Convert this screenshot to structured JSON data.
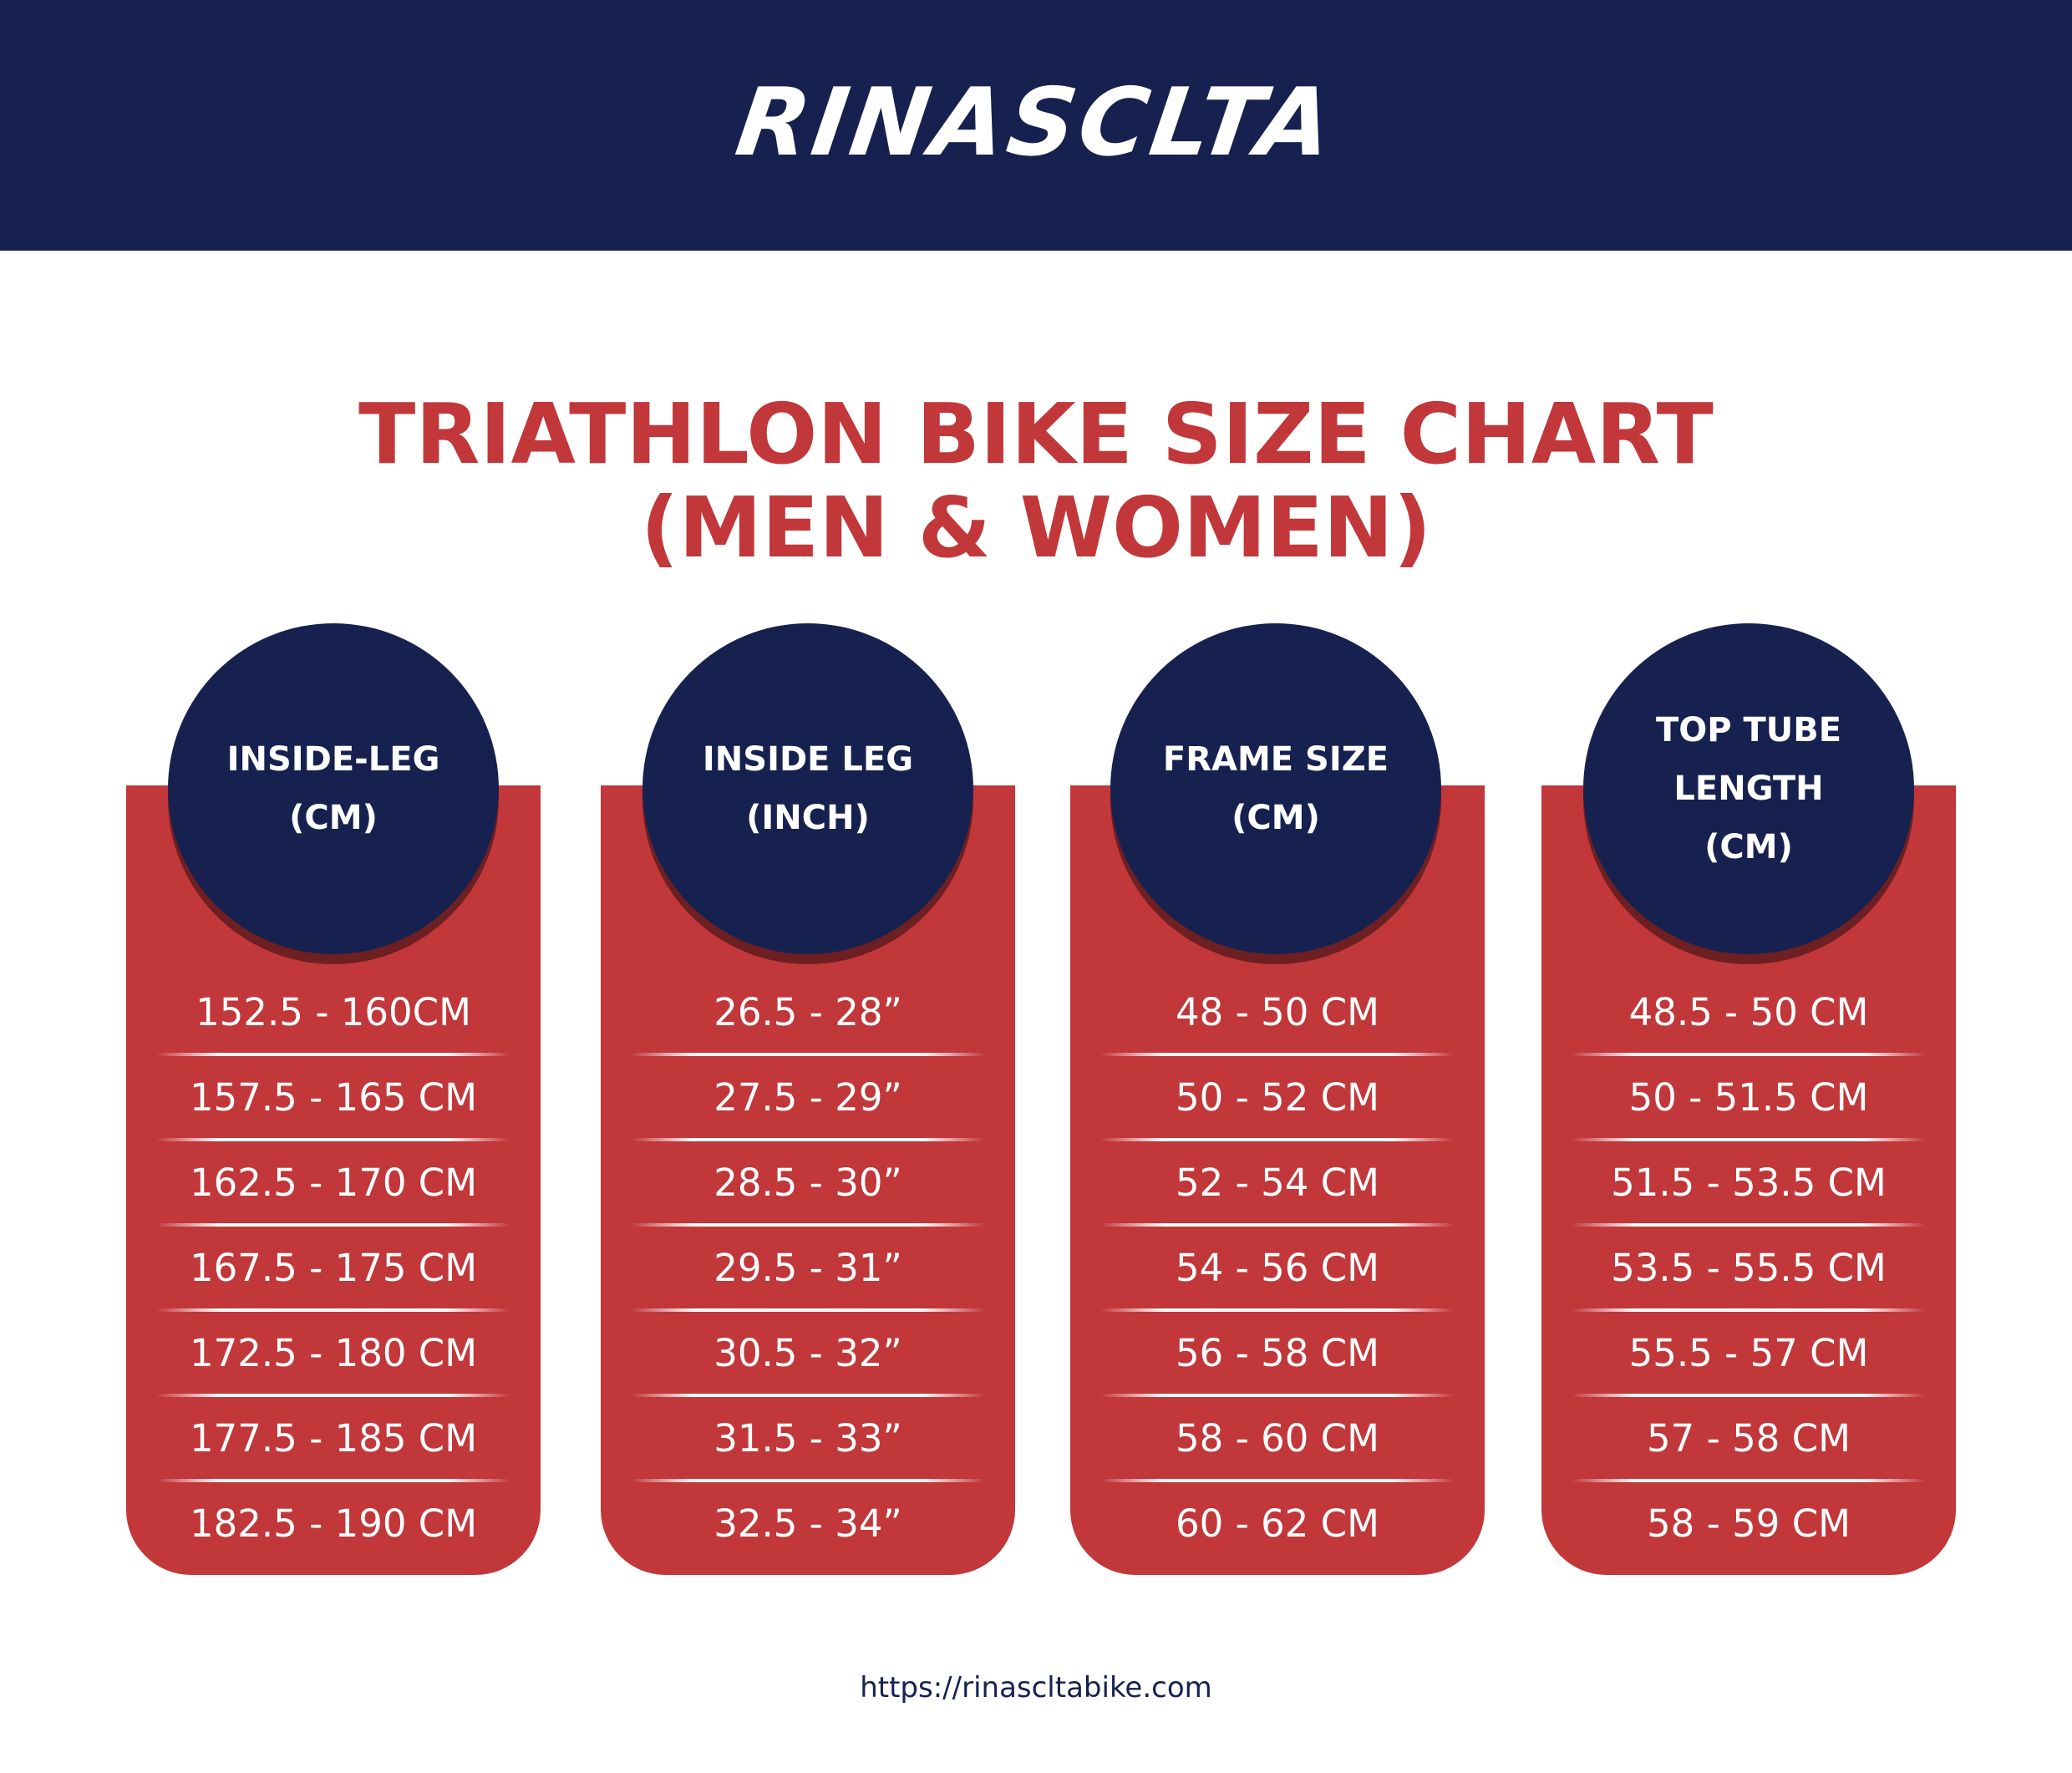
{
  "brand": {
    "logo_text": "RINASCLTA",
    "colors": {
      "navy": "#162150",
      "red": "#c1373a",
      "white": "#ffffff"
    }
  },
  "title": {
    "line1": "TRIATHLON BIKE SIZE CHART",
    "line2": "(MEN & WOMEN)"
  },
  "columns": [
    {
      "header_lines": [
        "INSIDE-LEG",
        "(CM)"
      ],
      "rows": [
        "152.5 - 160CM",
        "157.5 - 165 CM",
        "162.5 - 170 CM",
        "167.5 - 175 CM",
        "172.5 - 180 CM",
        "177.5 - 185 CM",
        "182.5 - 190 CM"
      ]
    },
    {
      "header_lines": [
        "INSIDE LEG",
        "(INCH)"
      ],
      "rows": [
        "26.5 - 28”",
        "27.5 - 29”",
        "28.5 - 30”",
        "29.5 - 31”",
        "30.5 - 32”",
        "31.5 - 33”",
        "32.5 - 34”"
      ]
    },
    {
      "header_lines": [
        "FRAME SIZE",
        "(CM)"
      ],
      "rows": [
        "48 - 50 CM",
        "50 - 52 CM",
        "52 - 54 CM",
        "54 - 56 CM",
        "56 - 58 CM",
        "58 - 60 CM",
        "60 - 62 CM"
      ]
    },
    {
      "header_lines": [
        "TOP TUBE",
        "LENGTH",
        "(CM)"
      ],
      "rows": [
        "48.5 - 50 CM",
        "50 - 51.5 CM",
        "51.5 - 53.5 CM",
        "53.5 - 55.5 CM",
        "55.5 - 57 CM",
        "57 - 58 CM",
        "58 - 59 CM"
      ]
    }
  ],
  "footer": {
    "url": "https://rinascltabike.com"
  }
}
